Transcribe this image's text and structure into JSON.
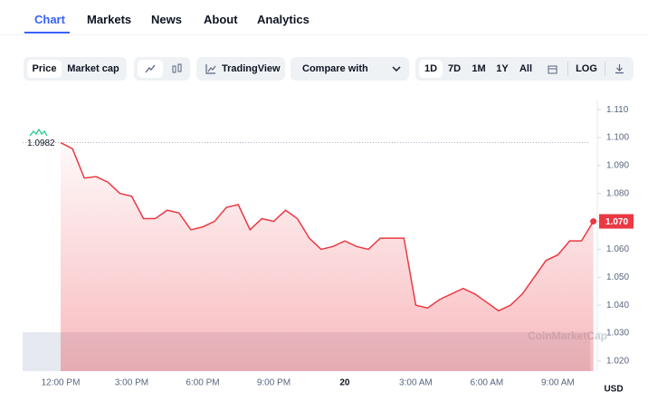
{
  "tabs": [
    "Chart",
    "Markets",
    "News",
    "About",
    "Analytics"
  ],
  "toolbar": {
    "price": "Price",
    "market_cap": "Market cap",
    "tradingview": "TradingView",
    "compare": "Compare with",
    "ranges": [
      "1D",
      "7D",
      "1M",
      "1Y",
      "All"
    ],
    "log": "LOG"
  },
  "chart_data": {
    "type": "line",
    "categories": [
      "12:00 PM",
      null,
      null,
      null,
      null,
      null,
      "3:00 PM",
      null,
      null,
      null,
      null,
      null,
      "6:00 PM",
      null,
      null,
      null,
      null,
      null,
      "9:00 PM",
      null,
      null,
      null,
      null,
      null,
      "20",
      null,
      null,
      null,
      null,
      null,
      "3:00 AM",
      null,
      null,
      null,
      null,
      null,
      "6:00 AM",
      null,
      null,
      null,
      null,
      null,
      "9:00 AM",
      null,
      null,
      null
    ],
    "values": [
      1.0982,
      1.096,
      1.0855,
      1.086,
      1.084,
      1.08,
      1.079,
      1.071,
      1.071,
      1.074,
      1.073,
      1.067,
      1.068,
      1.07,
      1.075,
      1.076,
      1.067,
      1.071,
      1.07,
      1.074,
      1.071,
      1.064,
      1.06,
      1.061,
      1.063,
      1.061,
      1.06,
      1.064,
      1.064,
      1.064,
      1.04,
      1.039,
      1.042,
      1.044,
      1.046,
      1.044,
      1.041,
      1.038,
      1.04,
      1.044,
      1.05,
      1.056,
      1.058,
      1.063,
      1.063,
      1.07
    ],
    "color": "#ea3943",
    "ylim": [
      1.0164,
      1.1136
    ],
    "yticks": [
      {
        "value": 1.11,
        "label": "1.110"
      },
      {
        "value": 1.1,
        "label": "1.100"
      },
      {
        "value": 1.09,
        "label": "1.090"
      },
      {
        "value": 1.08,
        "label": "1.080"
      },
      {
        "value": 1.07,
        "label": "1.070"
      },
      {
        "value": 1.06,
        "label": "1.060"
      },
      {
        "value": 1.05,
        "label": "1.050"
      },
      {
        "value": 1.04,
        "label": "1.040"
      },
      {
        "value": 1.03,
        "label": "1.030"
      },
      {
        "value": 1.02,
        "label": "1.020"
      }
    ],
    "open_price": 1.0982,
    "current_price": {
      "value": 1.07,
      "label": "1.070"
    },
    "y_unit": "USD",
    "watermark": "CoinMarketCap"
  }
}
